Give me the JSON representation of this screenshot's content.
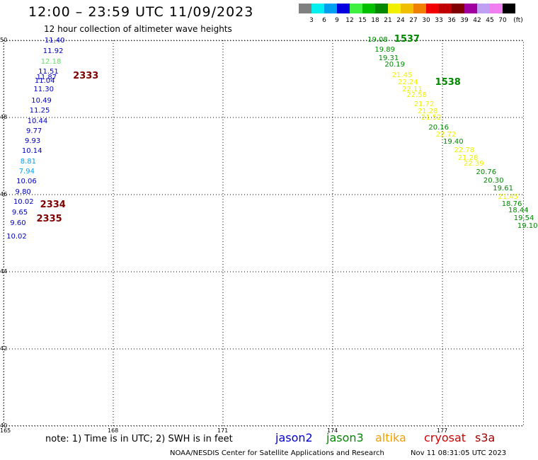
{
  "title": "12:00 – 23:59 UTC 11/09/2023",
  "subtitle": "12 hour collection of altimeter wave heights",
  "legend": {
    "unit": "(ft)",
    "bins": [
      {
        "label": "3",
        "color": "#808080"
      },
      {
        "label": "6",
        "color": "#00f0f0"
      },
      {
        "label": "9",
        "color": "#00a0f0"
      },
      {
        "label": "12",
        "color": "#0000e0"
      },
      {
        "label": "15",
        "color": "#40f040"
      },
      {
        "label": "18",
        "color": "#00c000"
      },
      {
        "label": "21",
        "color": "#008800"
      },
      {
        "label": "24",
        "color": "#f0f000"
      },
      {
        "label": "27",
        "color": "#f0c000"
      },
      {
        "label": "30",
        "color": "#f08000"
      },
      {
        "label": "33",
        "color": "#f00000"
      },
      {
        "label": "36",
        "color": "#c00000"
      },
      {
        "label": "39",
        "color": "#800000"
      },
      {
        "label": "42",
        "color": "#a000a0"
      },
      {
        "label": "45",
        "color": "#c0a0f0"
      },
      {
        "label": "70",
        "color": "#f080f0"
      },
      {
        "label": "",
        "color": "#000000"
      }
    ]
  },
  "map": {
    "lat_labels": [
      "50",
      "48",
      "46",
      "44",
      "42",
      "40"
    ],
    "lon_labels": [
      "165",
      "168",
      "171",
      "174",
      "177"
    ],
    "lat_range": [
      40,
      50
    ],
    "lon_range": [
      165,
      179.1
    ]
  },
  "tracks": [
    {
      "pass_labels": [
        {
          "text": "2333",
          "lon": 166.9,
          "lat": 49.06,
          "color": "#800000"
        },
        {
          "text": "2334",
          "lon": 166.0,
          "lat": 45.72,
          "color": "#800000"
        },
        {
          "text": "2335",
          "lon": 165.9,
          "lat": 45.36,
          "color": "#800000"
        }
      ],
      "points": [
        {
          "v": "11.40",
          "lon": 166.12,
          "lat": 49.98,
          "c": "#0000c0"
        },
        {
          "v": "11.92",
          "lon": 166.08,
          "lat": 49.71,
          "c": "#0000c0"
        },
        {
          "v": "12.18",
          "lon": 166.02,
          "lat": 49.44,
          "c": "#60e060"
        },
        {
          "v": "11.51",
          "lon": 165.95,
          "lat": 49.17,
          "c": "#0000c0"
        },
        {
          "v": "11.87",
          "lon": 165.9,
          "lat": 49.02,
          "c": "#0000c0"
        },
        {
          "v": "11.04",
          "lon": 165.85,
          "lat": 48.93,
          "c": "#0000c0"
        },
        {
          "v": "11.30",
          "lon": 165.82,
          "lat": 48.71,
          "c": "#0000c0"
        },
        {
          "v": "10.49",
          "lon": 165.76,
          "lat": 48.43,
          "c": "#0000c0"
        },
        {
          "v": "11.25",
          "lon": 165.71,
          "lat": 48.17,
          "c": "#0000c0"
        },
        {
          "v": "10.44",
          "lon": 165.65,
          "lat": 47.89,
          "c": "#0000c0"
        },
        {
          "v": "9.77",
          "lon": 165.62,
          "lat": 47.64,
          "c": "#0000c0"
        },
        {
          "v": "9.93",
          "lon": 165.58,
          "lat": 47.38,
          "c": "#0000c0"
        },
        {
          "v": "10.14",
          "lon": 165.5,
          "lat": 47.12,
          "c": "#0000c0"
        },
        {
          "v": "8.81",
          "lon": 165.46,
          "lat": 46.84,
          "c": "#00a0f0"
        },
        {
          "v": "7.94",
          "lon": 165.42,
          "lat": 46.58,
          "c": "#00a0f0"
        },
        {
          "v": "10.06",
          "lon": 165.35,
          "lat": 46.33,
          "c": "#0000c0"
        },
        {
          "v": "9.80",
          "lon": 165.32,
          "lat": 46.05,
          "c": "#0000c0"
        },
        {
          "v": "10.02",
          "lon": 165.27,
          "lat": 45.79,
          "c": "#0000c0"
        },
        {
          "v": "9.65",
          "lon": 165.23,
          "lat": 45.53,
          "c": "#0000c0"
        },
        {
          "v": "9.60",
          "lon": 165.18,
          "lat": 45.25,
          "c": "#0000c0"
        },
        {
          "v": "10.02",
          "lon": 165.08,
          "lat": 44.89,
          "c": "#0000c0"
        }
      ]
    },
    {
      "pass_labels": [
        {
          "text": "1537",
          "lon": 175.68,
          "lat": 50.02,
          "color": "#008800"
        },
        {
          "text": "1538",
          "lon": 176.8,
          "lat": 48.9,
          "color": "#008800"
        }
      ],
      "points": [
        {
          "v": "19.08",
          "lon": 174.95,
          "lat": 50.0,
          "c": "#008800"
        },
        {
          "v": "19.89",
          "lon": 175.15,
          "lat": 49.75,
          "c": "#008800"
        },
        {
          "v": "19.31",
          "lon": 175.25,
          "lat": 49.53,
          "c": "#008800"
        },
        {
          "v": "20.19",
          "lon": 175.42,
          "lat": 49.35,
          "c": "#008800"
        },
        {
          "v": "21.45",
          "lon": 175.62,
          "lat": 49.08,
          "c": "#f0f000"
        },
        {
          "v": "22.24",
          "lon": 175.78,
          "lat": 48.89,
          "c": "#f0f000"
        },
        {
          "v": "22.11",
          "lon": 175.9,
          "lat": 48.71,
          "c": "#f0f000"
        },
        {
          "v": "22.58",
          "lon": 176.02,
          "lat": 48.56,
          "c": "#f0f000"
        },
        {
          "v": "21.72",
          "lon": 176.22,
          "lat": 48.33,
          "c": "#f0f000"
        },
        {
          "v": "21.28",
          "lon": 176.32,
          "lat": 48.15,
          "c": "#f0f000"
        },
        {
          "v": "21.52",
          "lon": 176.42,
          "lat": 47.98,
          "c": "#f0f000"
        },
        {
          "v": "20.16",
          "lon": 176.62,
          "lat": 47.73,
          "c": "#008800"
        },
        {
          "v": "22.72",
          "lon": 176.82,
          "lat": 47.55,
          "c": "#f0f000"
        },
        {
          "v": "19.40",
          "lon": 177.02,
          "lat": 47.36,
          "c": "#008800"
        },
        {
          "v": "22.78",
          "lon": 177.32,
          "lat": 47.13,
          "c": "#f0f000"
        },
        {
          "v": "21.28",
          "lon": 177.42,
          "lat": 46.94,
          "c": "#f0f000"
        },
        {
          "v": "22.39",
          "lon": 177.58,
          "lat": 46.78,
          "c": "#f0f000"
        },
        {
          "v": "20.76",
          "lon": 177.92,
          "lat": 46.56,
          "c": "#008800"
        },
        {
          "v": "20.30",
          "lon": 178.12,
          "lat": 46.35,
          "c": "#008800"
        },
        {
          "v": "19.61",
          "lon": 178.38,
          "lat": 46.14,
          "c": "#008800"
        },
        {
          "v": "21.45",
          "lon": 178.52,
          "lat": 45.93,
          "c": "#f0f000"
        },
        {
          "v": "18.76",
          "lon": 178.62,
          "lat": 45.75,
          "c": "#008800"
        },
        {
          "v": "18.44",
          "lon": 178.8,
          "lat": 45.57,
          "c": "#008800"
        },
        {
          "v": "19.54",
          "lon": 178.95,
          "lat": 45.38,
          "c": "#008800"
        },
        {
          "v": "19.10",
          "lon": 179.05,
          "lat": 45.17,
          "c": "#008800"
        }
      ]
    }
  ],
  "footer": {
    "note": "note:  1) Time is in UTC;  2) SWH is in feet",
    "satellites": [
      {
        "name": "jason2",
        "color": "#0000d0"
      },
      {
        "name": "jason3",
        "color": "#008800"
      },
      {
        "name": "altika",
        "color": "#f0a000"
      },
      {
        "name": "cryosat",
        "color": "#d00000"
      },
      {
        "name": "s3a",
        "color": "#a00000"
      }
    ],
    "credit": "NOAA/NESDIS Center for Satellite Applications and Research",
    "timestamp": "Nov 11 08:31:05 UTC 2023"
  }
}
